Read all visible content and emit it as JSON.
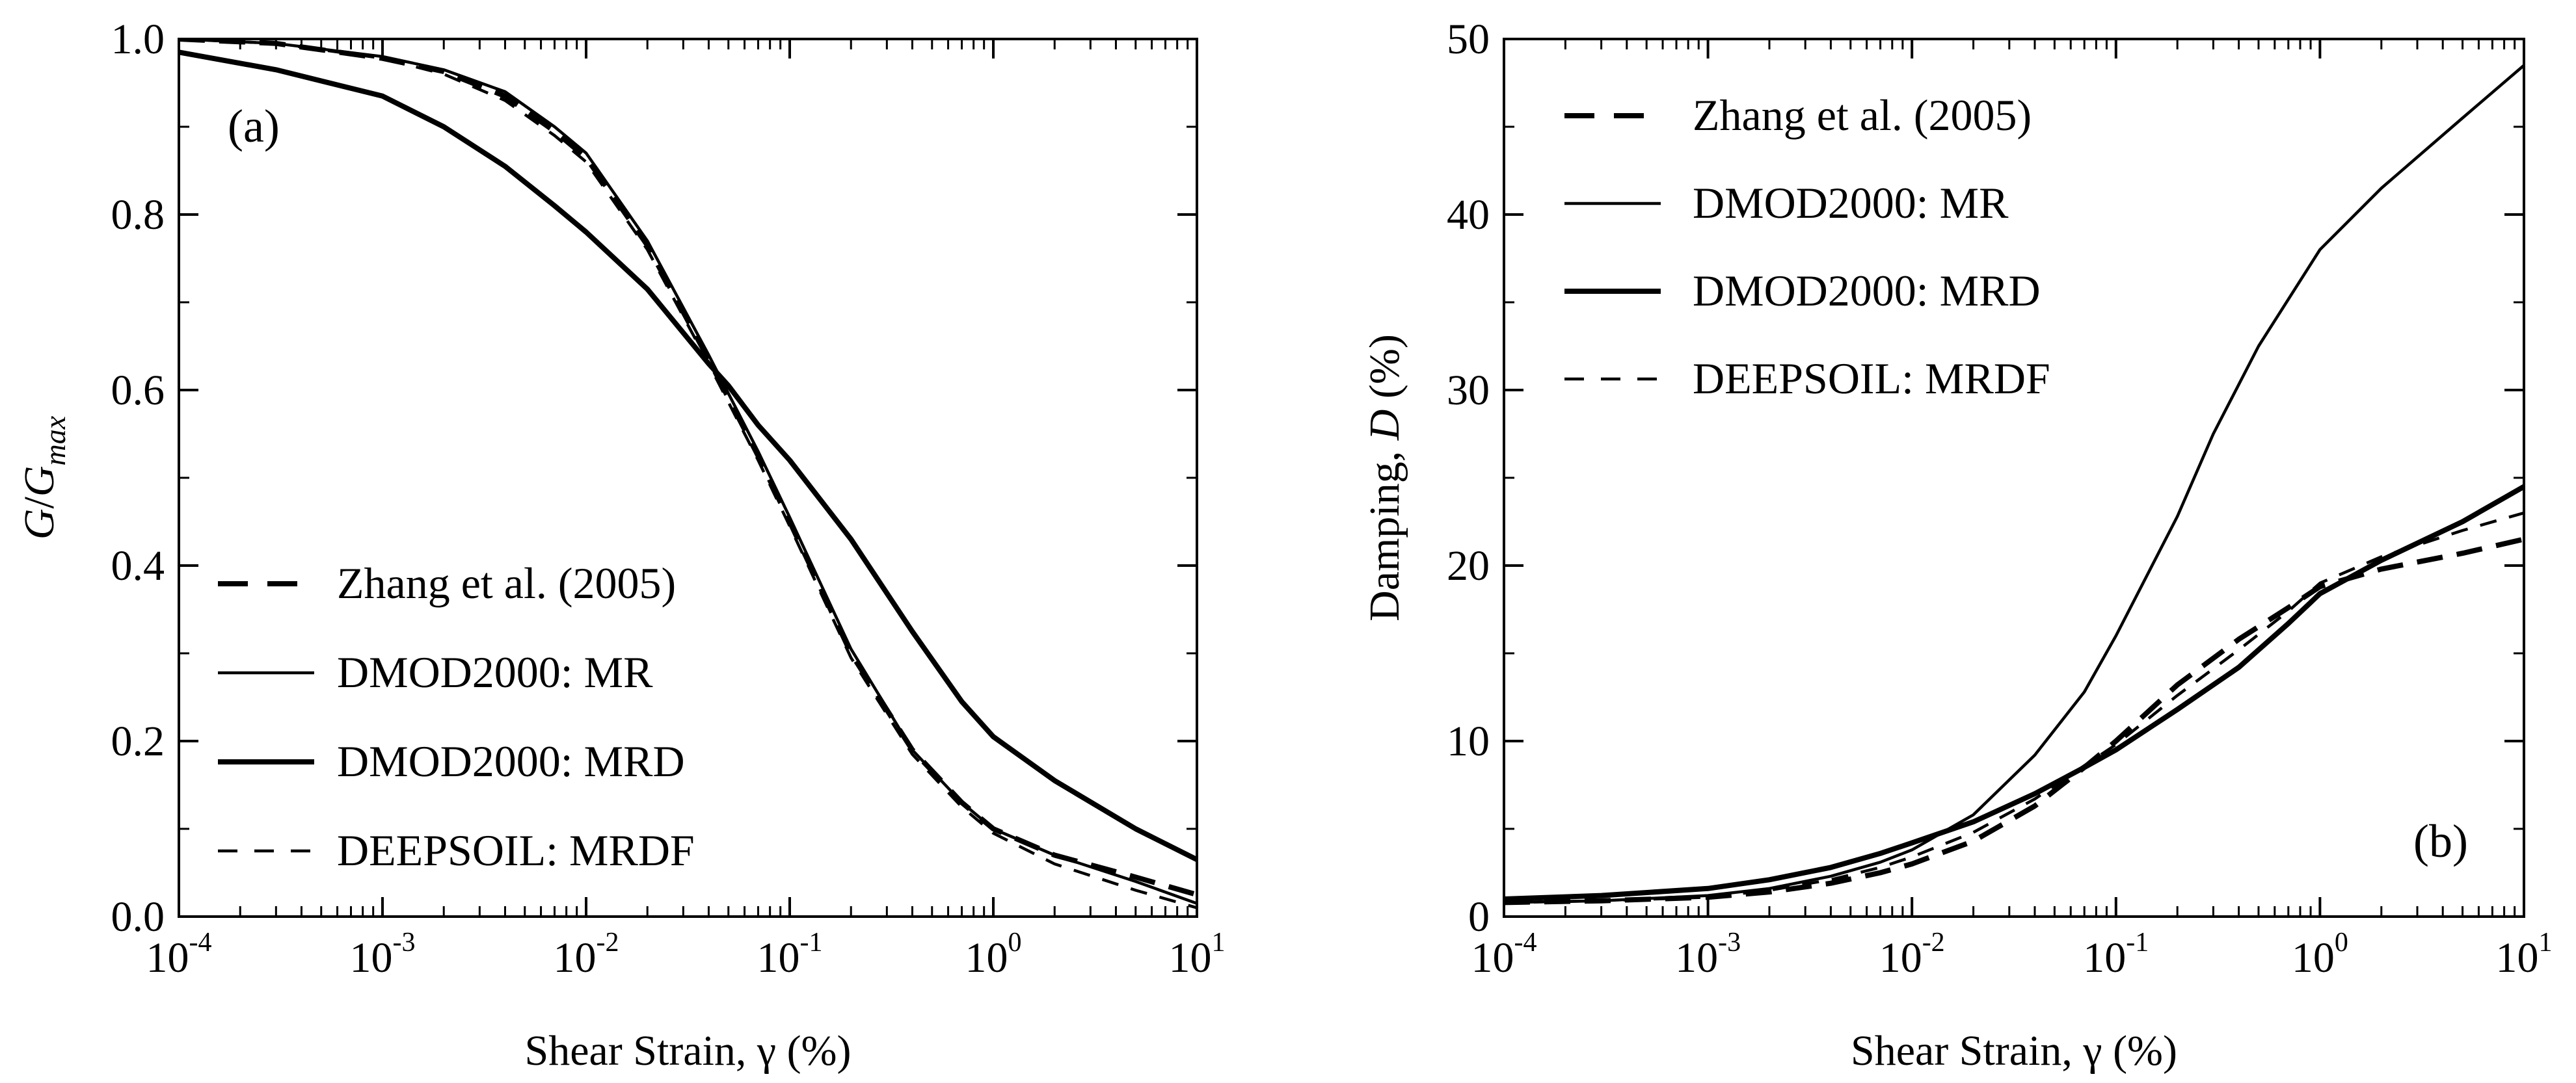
{
  "figure_title": "",
  "chart_data": [
    {
      "type": "line",
      "panel_label": "(a)",
      "title": "",
      "xlabel": "Shear Strain, γ (%)",
      "ylabel": "G/G",
      "ylabel_subscript": "max",
      "xscale": "log",
      "xlim": [
        0.0001,
        10
      ],
      "ylim": [
        0.0,
        1.0
      ],
      "grid": false,
      "legend_position": "lower-left",
      "x_ticks": [
        {
          "base": "10",
          "exp": "-4"
        },
        {
          "base": "10",
          "exp": "-3"
        },
        {
          "base": "10",
          "exp": "-2"
        },
        {
          "base": "10",
          "exp": "-1"
        },
        {
          "base": "10",
          "exp": "0"
        },
        {
          "base": "10",
          "exp": "1"
        }
      ],
      "y_ticks": [
        "0.0",
        "0.2",
        "0.4",
        "0.6",
        "0.8",
        "1.0"
      ],
      "y_tick_values": [
        0.0,
        0.2,
        0.4,
        0.6,
        0.8,
        1.0
      ],
      "series": [
        {
          "name": "Zhang et al. (2005)",
          "style": "thick-dashed",
          "x": [
            0.0001,
            0.0003,
            0.001,
            0.002,
            0.004,
            0.007,
            0.01,
            0.02,
            0.04,
            0.07,
            0.1,
            0.2,
            0.4,
            0.7,
            1,
            2,
            5,
            10
          ],
          "y": [
            1.0,
            0.995,
            0.978,
            0.963,
            0.935,
            0.895,
            0.865,
            0.765,
            0.635,
            0.525,
            0.45,
            0.3,
            0.19,
            0.13,
            0.1,
            0.07,
            0.045,
            0.025
          ]
        },
        {
          "name": "DMOD2000: MR",
          "style": "thin-solid",
          "x": [
            0.0001,
            0.0003,
            0.001,
            0.002,
            0.004,
            0.007,
            0.01,
            0.02,
            0.04,
            0.07,
            0.1,
            0.2,
            0.4,
            0.7,
            1,
            2,
            5,
            10
          ],
          "y": [
            1.0,
            0.995,
            0.98,
            0.965,
            0.94,
            0.9,
            0.87,
            0.77,
            0.64,
            0.53,
            0.455,
            0.305,
            0.19,
            0.13,
            0.1,
            0.07,
            0.04,
            0.015
          ]
        },
        {
          "name": "DMOD2000: MRD",
          "style": "thick-solid",
          "x": [
            0.0001,
            0.0003,
            0.001,
            0.002,
            0.004,
            0.007,
            0.01,
            0.02,
            0.04,
            0.05,
            0.07,
            0.1,
            0.2,
            0.4,
            0.7,
            1,
            2,
            5,
            10
          ],
          "y": [
            0.985,
            0.965,
            0.935,
            0.9,
            0.855,
            0.81,
            0.78,
            0.715,
            0.63,
            0.605,
            0.56,
            0.52,
            0.43,
            0.325,
            0.245,
            0.205,
            0.155,
            0.1,
            0.065
          ]
        },
        {
          "name": "DEEPSOIL: MRDF",
          "style": "thin-dashed",
          "x": [
            0.0001,
            0.0003,
            0.001,
            0.002,
            0.004,
            0.007,
            0.01,
            0.02,
            0.04,
            0.07,
            0.1,
            0.2,
            0.4,
            0.7,
            1,
            2,
            5,
            10
          ],
          "y": [
            1.0,
            0.995,
            0.978,
            0.96,
            0.93,
            0.89,
            0.86,
            0.76,
            0.63,
            0.52,
            0.445,
            0.295,
            0.185,
            0.125,
            0.095,
            0.06,
            0.03,
            0.01
          ]
        }
      ]
    },
    {
      "type": "line",
      "panel_label": "(b)",
      "title": "",
      "xlabel": "Shear Strain, γ (%)",
      "ylabel": "Damping, ",
      "ylabel_italic": "D",
      "ylabel_suffix": " (%)",
      "xscale": "log",
      "xlim": [
        0.0001,
        10
      ],
      "ylim": [
        0,
        50
      ],
      "grid": false,
      "legend_position": "top-left",
      "x_ticks": [
        {
          "base": "10",
          "exp": "-4"
        },
        {
          "base": "10",
          "exp": "-3"
        },
        {
          "base": "10",
          "exp": "-2"
        },
        {
          "base": "10",
          "exp": "-1"
        },
        {
          "base": "10",
          "exp": "0"
        },
        {
          "base": "10",
          "exp": "1"
        }
      ],
      "y_ticks": [
        "0",
        "10",
        "20",
        "30",
        "40",
        "50"
      ],
      "y_tick_values": [
        0,
        10,
        20,
        30,
        40,
        50
      ],
      "series": [
        {
          "name": "Zhang et al. (2005)",
          "style": "thick-dashed",
          "x": [
            0.0001,
            0.0003,
            0.001,
            0.002,
            0.004,
            0.007,
            0.01,
            0.02,
            0.04,
            0.07,
            0.1,
            0.2,
            0.4,
            0.7,
            1,
            2,
            5,
            10
          ],
          "y": [
            0.8,
            0.9,
            1.1,
            1.4,
            1.9,
            2.5,
            3.0,
            4.3,
            6.3,
            8.5,
            10.0,
            13.2,
            15.8,
            17.6,
            18.8,
            19.8,
            20.7,
            21.5
          ]
        },
        {
          "name": "DMOD2000: MR",
          "style": "thin-solid",
          "x": [
            0.0001,
            0.0003,
            0.001,
            0.002,
            0.004,
            0.007,
            0.01,
            0.02,
            0.04,
            0.07,
            0.1,
            0.2,
            0.3,
            0.5,
            1,
            2,
            5,
            10
          ],
          "y": [
            0.8,
            0.9,
            1.2,
            1.6,
            2.3,
            3.1,
            3.8,
            5.8,
            9.2,
            12.8,
            16.0,
            22.8,
            27.5,
            32.5,
            38.0,
            41.5,
            45.5,
            48.5
          ]
        },
        {
          "name": "DMOD2000: MRD",
          "style": "thick-solid",
          "x": [
            0.0001,
            0.0003,
            0.001,
            0.002,
            0.004,
            0.007,
            0.01,
            0.02,
            0.04,
            0.07,
            0.1,
            0.2,
            0.4,
            0.7,
            1,
            2,
            5,
            10
          ],
          "y": [
            1.0,
            1.2,
            1.6,
            2.1,
            2.8,
            3.6,
            4.2,
            5.4,
            7.0,
            8.5,
            9.5,
            11.8,
            14.2,
            16.7,
            18.4,
            20.3,
            22.5,
            24.5
          ]
        },
        {
          "name": "DEEPSOIL: MRDF",
          "style": "thin-dashed",
          "x": [
            0.0001,
            0.0003,
            0.001,
            0.002,
            0.004,
            0.007,
            0.01,
            0.02,
            0.04,
            0.07,
            0.1,
            0.2,
            0.4,
            0.7,
            1,
            2,
            5,
            10
          ],
          "y": [
            0.8,
            0.9,
            1.1,
            1.5,
            2.1,
            2.8,
            3.4,
            4.8,
            6.7,
            8.6,
            9.8,
            12.6,
            15.2,
            17.4,
            19.0,
            20.5,
            22.0,
            23.0
          ]
        }
      ]
    }
  ],
  "series_styles": {
    "thick-dashed": {
      "color": "#000000",
      "dash": "dash-long",
      "weight": "thick"
    },
    "thin-solid": {
      "color": "#000000",
      "dash": "none",
      "weight": "thin"
    },
    "thick-solid": {
      "color": "#000000",
      "dash": "none",
      "weight": "thick"
    },
    "thin-dashed": {
      "color": "#000000",
      "dash": "dash-short",
      "weight": "thin"
    }
  }
}
